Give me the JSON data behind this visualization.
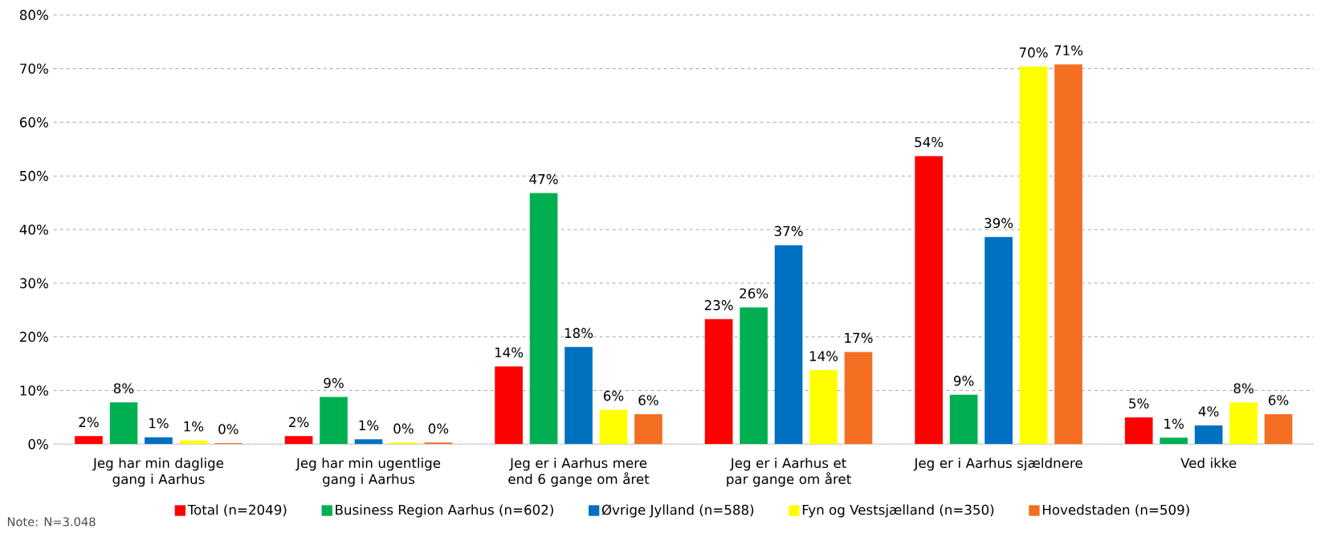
{
  "chart_data": {
    "type": "bar",
    "categories": [
      "Jeg har min daglige gang i Aarhus",
      "Jeg har min ugentlige gang i Aarhus",
      "Jeg er i Aarhus mere end 6 gange om året",
      "Jeg er i Aarhus et par gange om året",
      "Jeg er i Aarhus sjældnere",
      "Ved ikke"
    ],
    "series": [
      {
        "name": "Total (n=2049)",
        "color": "#ff0000",
        "values": [
          1.5,
          1.5,
          14.5,
          23.3,
          53.7,
          5.0
        ],
        "value_labels": [
          "2%",
          "2%",
          "14%",
          "23%",
          "54%",
          "5%"
        ]
      },
      {
        "name": "Business Region Aarhus (n=602)",
        "color": "#00b050",
        "values": [
          7.8,
          8.8,
          46.8,
          25.5,
          9.2,
          1.2
        ],
        "value_labels": [
          "8%",
          "9%",
          "47%",
          "26%",
          "9%",
          "1%"
        ]
      },
      {
        "name": "Øvrige Jylland (n=588)",
        "color": "#0070c0",
        "values": [
          1.3,
          0.9,
          18.1,
          37.1,
          38.6,
          3.5
        ],
        "value_labels": [
          "1%",
          "1%",
          "18%",
          "37%",
          "39%",
          "4%"
        ]
      },
      {
        "name": "Fyn og Vestsjælland (n=350)",
        "color": "#ffff00",
        "values": [
          0.7,
          0.3,
          6.4,
          13.8,
          70.4,
          7.8
        ],
        "value_labels": [
          "1%",
          "0%",
          "6%",
          "14%",
          "70%",
          "8%"
        ]
      },
      {
        "name": "Hovedstaden (n=509)",
        "color": "#f46f22",
        "values": [
          0.2,
          0.3,
          5.6,
          17.2,
          70.8,
          5.6
        ],
        "value_labels": [
          "0%",
          "0%",
          "6%",
          "17%",
          "71%",
          "6%"
        ]
      }
    ],
    "ylim": [
      0,
      80
    ],
    "yticks": [
      {
        "value": 0,
        "label": "0%"
      },
      {
        "value": 10,
        "label": "10%"
      },
      {
        "value": 20,
        "label": "20%"
      },
      {
        "value": 30,
        "label": "30%"
      },
      {
        "value": 40,
        "label": "40%"
      },
      {
        "value": 50,
        "label": "50%"
      },
      {
        "value": 60,
        "label": "60%"
      },
      {
        "value": 70,
        "label": "70%"
      },
      {
        "value": 80,
        "label": "80%"
      }
    ],
    "grid": "y",
    "legend": "bottom",
    "annotations": [
      "Note: N=3.048"
    ]
  }
}
